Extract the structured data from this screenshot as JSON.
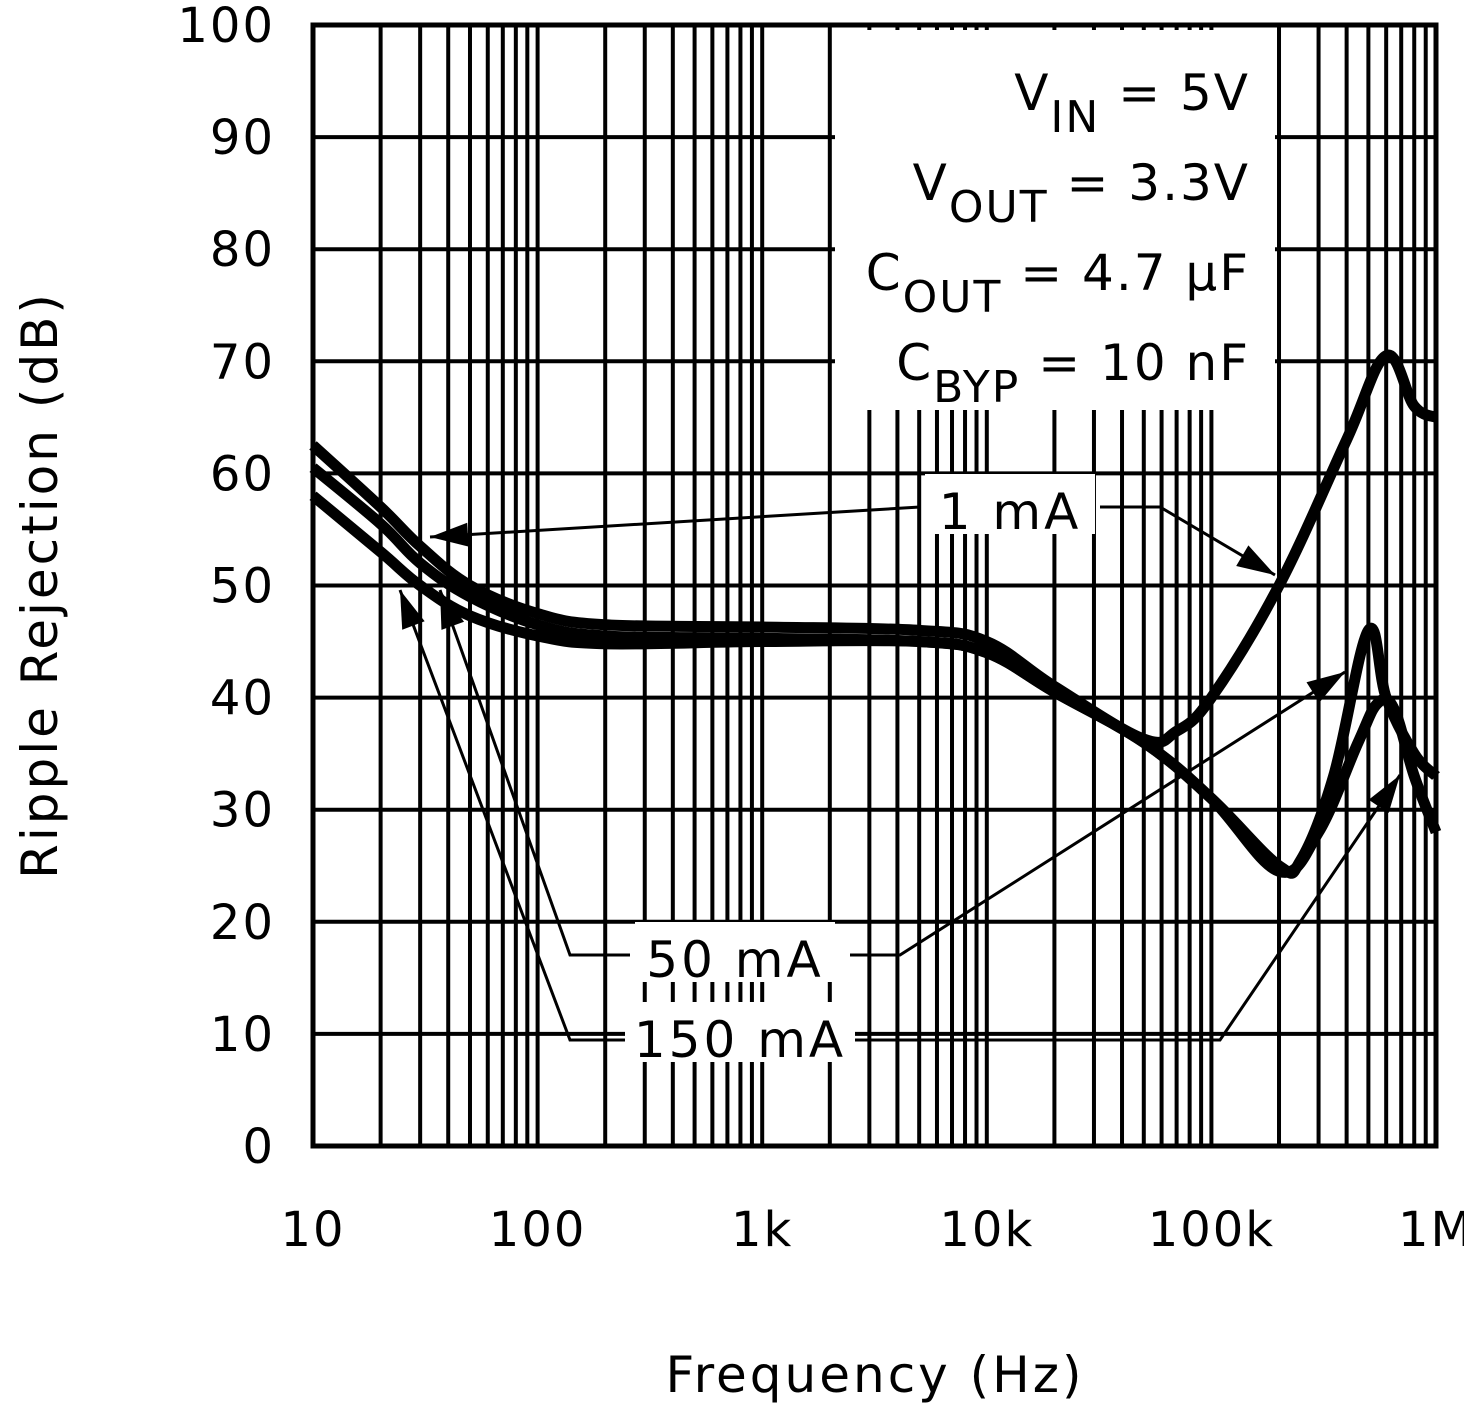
{
  "chart_data": {
    "type": "line",
    "title": "",
    "xlabel": "Frequency (Hz)",
    "ylabel": "Ripple Rejection (dB)",
    "x_scale": "log",
    "xlim": [
      10,
      1000000
    ],
    "ylim": [
      0,
      100
    ],
    "grid": true,
    "x_ticks": [
      10,
      100,
      1000,
      10000,
      100000,
      1000000
    ],
    "x_tick_labels": [
      "10",
      "100",
      "1k",
      "10k",
      "100k",
      "1M"
    ],
    "y_ticks": [
      0,
      10,
      20,
      30,
      40,
      50,
      60,
      70,
      80,
      90,
      100
    ],
    "y_tick_labels": [
      "0",
      "10",
      "20",
      "30",
      "40",
      "50",
      "60",
      "70",
      "80",
      "90",
      "100"
    ],
    "conditions": [
      {
        "main": "V",
        "sub": "IN",
        "rest": " = 5V"
      },
      {
        "main": "V",
        "sub": "OUT",
        "rest": " = 3.3V"
      },
      {
        "main": "C",
        "sub": "OUT",
        "rest": " = 4.7 µF"
      },
      {
        "main": "C",
        "sub": "BYP",
        "rest": " = 10 nF"
      }
    ],
    "series": [
      {
        "name": "1 mA",
        "x": [
          10,
          20,
          30,
          50,
          100,
          200,
          1000,
          5000,
          10000,
          20000,
          50000,
          70000,
          100000,
          200000,
          400000,
          600000,
          800000,
          1000000
        ],
        "y": [
          62.5,
          57,
          53.5,
          50,
          47.5,
          46.5,
          46.3,
          46,
          45,
          41,
          36.3,
          37,
          40,
          50,
          63,
          70.5,
          66,
          65
        ]
      },
      {
        "name": "50 mA",
        "x": [
          10,
          20,
          30,
          50,
          100,
          200,
          1000,
          5000,
          10000,
          20000,
          50000,
          100000,
          200000,
          250000,
          350000,
          500000,
          600000,
          800000,
          1000000
        ],
        "y": [
          60.5,
          55.5,
          52,
          49,
          46.5,
          45.5,
          45.3,
          45,
          44,
          40.5,
          36,
          31,
          25,
          25.5,
          33,
          46,
          40,
          35,
          33
        ]
      },
      {
        "name": "150 mA",
        "x": [
          10,
          20,
          30,
          50,
          100,
          200,
          1000,
          5000,
          10000,
          20000,
          50000,
          100000,
          200000,
          300000,
          450000,
          550000,
          650000,
          800000,
          1000000
        ],
        "y": [
          58,
          53,
          50,
          47.3,
          45.5,
          44.8,
          45,
          45,
          44,
          40.5,
          36,
          31,
          24.5,
          28,
          36,
          39.5,
          39,
          33,
          28
        ]
      }
    ],
    "color": "#000000"
  }
}
